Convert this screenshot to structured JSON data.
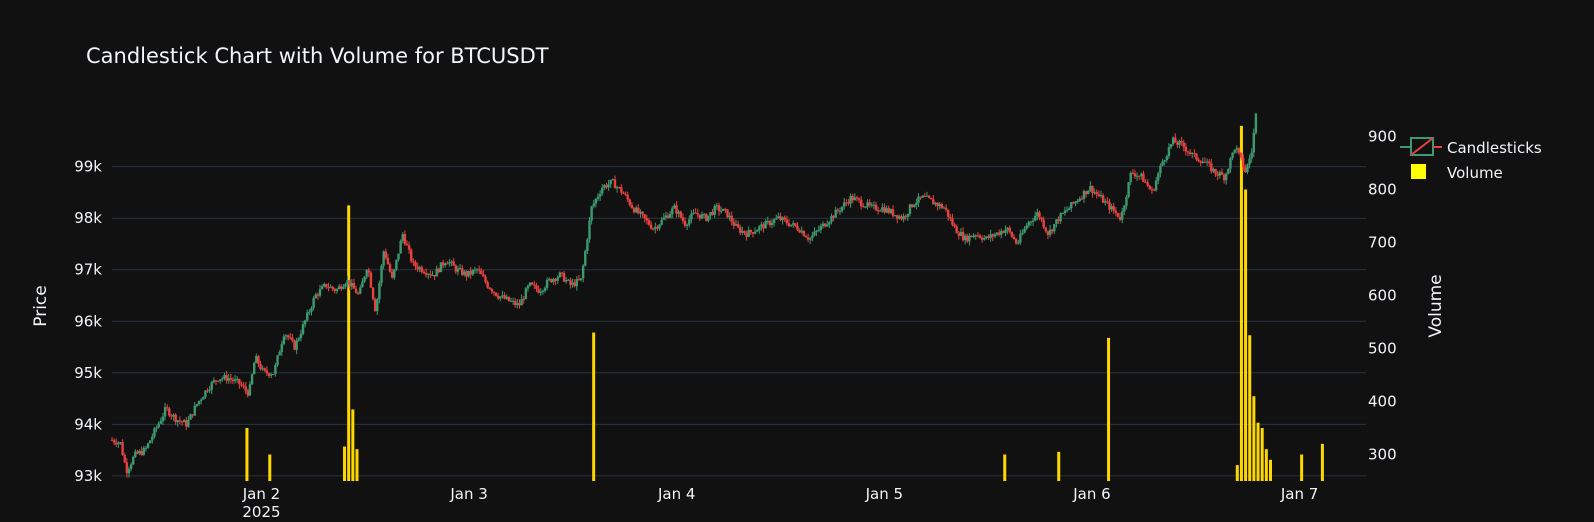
{
  "chart_data": {
    "type": "candlestick",
    "title": "Candlestick Chart with Volume for BTCUSDT",
    "ylabel": "Price",
    "y2label": "Volume",
    "ylim": [
      92900,
      100100
    ],
    "y2lim": [
      250,
      950
    ],
    "yticks": [
      {
        "v": 93000,
        "label": "93k"
      },
      {
        "v": 94000,
        "label": "94k"
      },
      {
        "v": 95000,
        "label": "95k"
      },
      {
        "v": 96000,
        "label": "96k"
      },
      {
        "v": 97000,
        "label": "97k"
      },
      {
        "v": 98000,
        "label": "98k"
      },
      {
        "v": 99000,
        "label": "99k"
      }
    ],
    "y2ticks": [
      {
        "v": 300,
        "label": "300"
      },
      {
        "v": 400,
        "label": "400"
      },
      {
        "v": 500,
        "label": "500"
      },
      {
        "v": 600,
        "label": "600"
      },
      {
        "v": 700,
        "label": "700"
      },
      {
        "v": 800,
        "label": "800"
      },
      {
        "v": 900,
        "label": "900"
      }
    ],
    "xlim": [
      1.28,
      7.32
    ],
    "xticks": [
      {
        "v": 2,
        "label": "Jan 2",
        "sub": "2025"
      },
      {
        "v": 3,
        "label": "Jan 3"
      },
      {
        "v": 4,
        "label": "Jan 4"
      },
      {
        "v": 5,
        "label": "Jan 5"
      },
      {
        "v": 6,
        "label": "Jan 6"
      },
      {
        "v": 7,
        "label": "Jan 7"
      }
    ],
    "x_unit_note": "x values are days in Jan 2025 (fractional)",
    "price_path": [
      [
        1.28,
        93700
      ],
      [
        1.33,
        93650
      ],
      [
        1.36,
        93100
      ],
      [
        1.4,
        93400
      ],
      [
        1.45,
        93500
      ],
      [
        1.5,
        93900
      ],
      [
        1.55,
        94300
      ],
      [
        1.6,
        94100
      ],
      [
        1.65,
        94000
      ],
      [
        1.7,
        94400
      ],
      [
        1.75,
        94700
      ],
      [
        1.8,
        94900
      ],
      [
        1.85,
        94900
      ],
      [
        1.9,
        94800
      ],
      [
        1.95,
        94600
      ],
      [
        1.98,
        95300
      ],
      [
        2.02,
        95000
      ],
      [
        2.07,
        95000
      ],
      [
        2.12,
        95800
      ],
      [
        2.17,
        95500
      ],
      [
        2.22,
        96000
      ],
      [
        2.27,
        96500
      ],
      [
        2.32,
        96700
      ],
      [
        2.37,
        96600
      ],
      [
        2.42,
        96800
      ],
      [
        2.48,
        96500
      ],
      [
        2.52,
        97100
      ],
      [
        2.56,
        96200
      ],
      [
        2.6,
        97400
      ],
      [
        2.64,
        96800
      ],
      [
        2.69,
        97700
      ],
      [
        2.74,
        97100
      ],
      [
        2.79,
        97000
      ],
      [
        2.84,
        96900
      ],
      [
        2.9,
        97200
      ],
      [
        2.95,
        97000
      ],
      [
        3.0,
        96900
      ],
      [
        3.05,
        97000
      ],
      [
        3.1,
        96700
      ],
      [
        3.15,
        96500
      ],
      [
        3.2,
        96400
      ],
      [
        3.25,
        96300
      ],
      [
        3.3,
        96700
      ],
      [
        3.35,
        96600
      ],
      [
        3.4,
        96800
      ],
      [
        3.45,
        96900
      ],
      [
        3.5,
        96700
      ],
      [
        3.55,
        96800
      ],
      [
        3.6,
        98200
      ],
      [
        3.65,
        98600
      ],
      [
        3.7,
        98700
      ],
      [
        3.75,
        98500
      ],
      [
        3.8,
        98200
      ],
      [
        3.85,
        98000
      ],
      [
        3.9,
        97800
      ],
      [
        3.95,
        98000
      ],
      [
        4.0,
        98200
      ],
      [
        4.05,
        97900
      ],
      [
        4.1,
        98100
      ],
      [
        4.15,
        98000
      ],
      [
        4.2,
        98200
      ],
      [
        4.25,
        98100
      ],
      [
        4.3,
        97800
      ],
      [
        4.35,
        97700
      ],
      [
        4.4,
        97800
      ],
      [
        4.45,
        97900
      ],
      [
        4.5,
        98000
      ],
      [
        4.55,
        97900
      ],
      [
        4.6,
        97800
      ],
      [
        4.65,
        97600
      ],
      [
        4.7,
        97800
      ],
      [
        4.75,
        98000
      ],
      [
        4.8,
        98200
      ],
      [
        4.85,
        98400
      ],
      [
        4.9,
        98300
      ],
      [
        4.95,
        98200
      ],
      [
        5.0,
        98200
      ],
      [
        5.05,
        98100
      ],
      [
        5.1,
        98000
      ],
      [
        5.15,
        98300
      ],
      [
        5.2,
        98400
      ],
      [
        5.25,
        98300
      ],
      [
        5.3,
        98200
      ],
      [
        5.35,
        97800
      ],
      [
        5.4,
        97600
      ],
      [
        5.45,
        97700
      ],
      [
        5.5,
        97600
      ],
      [
        5.55,
        97700
      ],
      [
        5.6,
        97800
      ],
      [
        5.65,
        97500
      ],
      [
        5.7,
        97900
      ],
      [
        5.75,
        98100
      ],
      [
        5.8,
        97700
      ],
      [
        5.85,
        98000
      ],
      [
        5.9,
        98200
      ],
      [
        5.95,
        98400
      ],
      [
        6.0,
        98600
      ],
      [
        6.05,
        98400
      ],
      [
        6.1,
        98200
      ],
      [
        6.15,
        98000
      ],
      [
        6.2,
        98900
      ],
      [
        6.25,
        98800
      ],
      [
        6.3,
        98500
      ],
      [
        6.35,
        99100
      ],
      [
        6.4,
        99500
      ],
      [
        6.45,
        99400
      ],
      [
        6.5,
        99200
      ],
      [
        6.55,
        99100
      ],
      [
        6.6,
        98900
      ],
      [
        6.65,
        98800
      ],
      [
        6.7,
        99400
      ],
      [
        6.75,
        98900
      ],
      [
        6.78,
        99300
      ],
      [
        6.8,
        100000
      ]
    ],
    "volume_bars": [
      [
        1.93,
        350
      ],
      [
        2.04,
        300
      ],
      [
        2.4,
        315
      ],
      [
        2.42,
        770
      ],
      [
        2.44,
        385
      ],
      [
        2.46,
        310
      ],
      [
        3.6,
        530
      ],
      [
        5.58,
        300
      ],
      [
        5.84,
        305
      ],
      [
        6.08,
        520
      ],
      [
        6.7,
        280
      ],
      [
        6.72,
        920
      ],
      [
        6.74,
        800
      ],
      [
        6.76,
        525
      ],
      [
        6.78,
        410
      ],
      [
        6.8,
        360
      ],
      [
        6.82,
        350
      ],
      [
        6.84,
        310
      ],
      [
        6.86,
        290
      ],
      [
        7.01,
        300
      ],
      [
        7.11,
        320
      ]
    ],
    "legend": [
      {
        "name": "Candlesticks"
      },
      {
        "name": "Volume"
      }
    ],
    "legend_position": "top-right",
    "colors": {
      "up": "#3d9970",
      "down": "#e8423f",
      "volume": "#ffd700",
      "background": "#111111",
      "grid": "#283442"
    },
    "grid": true
  }
}
